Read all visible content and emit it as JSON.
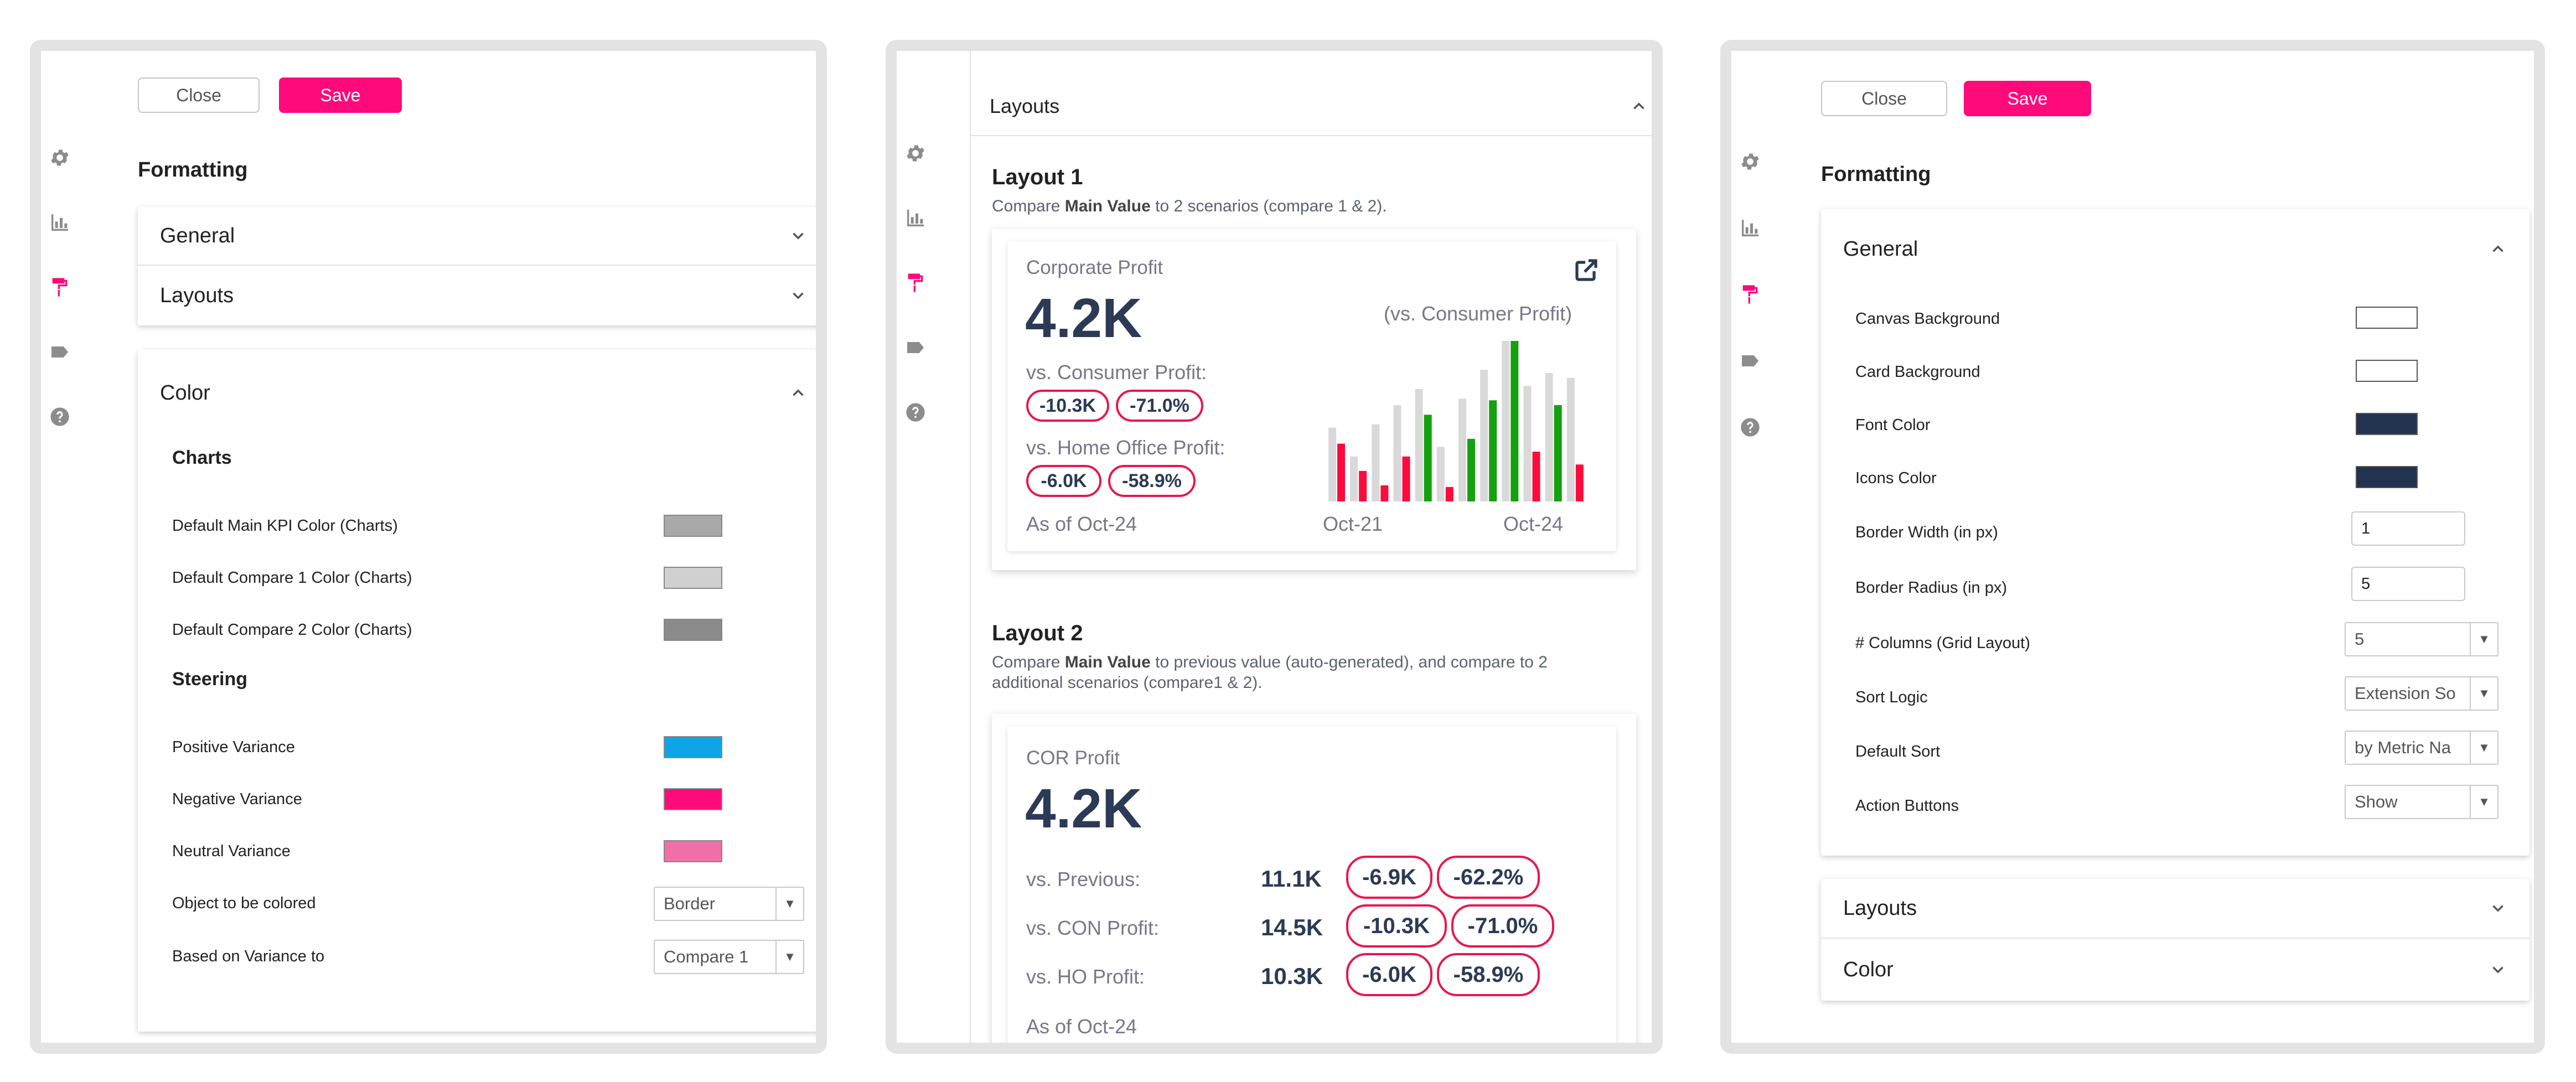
{
  "rail_icons": [
    "gear-icon",
    "bar-chart-icon",
    "paint-roller-icon",
    "tag-icon",
    "help-icon"
  ],
  "colors": {
    "accent": "#ff0a7a",
    "kpi_text": "#2b3a55",
    "pill_border": "#e8174e",
    "bar_gray": "#d9d9d9",
    "bar_red": "#ff0a3c",
    "bar_green": "#13a10e"
  },
  "panel1": {
    "buttons": {
      "close": "Close",
      "save": "Save"
    },
    "heading": "Formatting",
    "accordion": {
      "general": "General",
      "layouts": "Layouts",
      "color": "Color"
    },
    "charts": {
      "heading": "Charts",
      "rows": [
        {
          "label": "Default Main KPI Color (Charts)",
          "color": "#a9a9a9"
        },
        {
          "label": "Default Compare 1 Color (Charts)",
          "color": "#d0d0d0"
        },
        {
          "label": "Default Compare 2 Color (Charts)",
          "color": "#8b8b8b"
        }
      ]
    },
    "steering": {
      "heading": "Steering",
      "rows": [
        {
          "label": "Positive Variance",
          "color": "#0ea5e6"
        },
        {
          "label": "Negative Variance",
          "color": "#ff0a7a"
        },
        {
          "label": "Neutral Variance",
          "color": "#f06fa6"
        }
      ]
    },
    "selects": [
      {
        "label": "Object to be colored",
        "value": "Border"
      },
      {
        "label": "Based on Variance to",
        "value": "Compare 1"
      }
    ]
  },
  "panel2": {
    "section_title": "Layouts",
    "layout1": {
      "title": "Layout 1",
      "desc_pre": "Compare ",
      "desc_bold": "Main Value",
      "desc_post": " to 2 scenarios (compare 1 & 2).",
      "card": {
        "title": "Corporate Profit",
        "value": "4.2K",
        "chart_caption": "(vs. Consumer Profit)",
        "cmp1_label": "vs. Consumer Profit:",
        "cmp1_abs": "-10.3K",
        "cmp1_pct": "-71.0%",
        "cmp2_label": "vs. Home Office Profit:",
        "cmp2_abs": "-6.0K",
        "cmp2_pct": "-58.9%",
        "as_of": "As of Oct-24",
        "x_start": "Oct-21",
        "x_end": "Oct-24"
      }
    },
    "layout2": {
      "title": "Layout 2",
      "desc_pre": "Compare ",
      "desc_bold": "Main Value",
      "desc_post": " to previous value (auto-generated), and compare to 2",
      "desc_line2": "additional scenarios (compare1 & 2).",
      "card": {
        "title": "COR Profit",
        "value": "4.2K",
        "rows": [
          {
            "label": "vs. Previous:",
            "value": "11.1K",
            "abs": "-6.9K",
            "pct": "-62.2%"
          },
          {
            "label": "vs. CON Profit:",
            "value": "14.5K",
            "abs": "-10.3K",
            "pct": "-71.0%"
          },
          {
            "label": "vs. HO Profit:",
            "value": "10.3K",
            "abs": "-6.0K",
            "pct": "-58.9%"
          }
        ],
        "as_of": "As of Oct-24"
      }
    }
  },
  "chart_data": {
    "type": "bar",
    "title": "(vs. Consumer Profit)",
    "xlabel": "",
    "ylabel": "",
    "x_tick_labels": [
      "Oct-21",
      "Oct-24"
    ],
    "series": [
      {
        "name": "",
        "color": "#d9d9d9",
        "values": [
          46,
          28,
          48,
          60,
          70,
          34,
          64,
          82,
          100,
          72,
          80,
          77
        ]
      },
      {
        "name": "",
        "color": "mixed",
        "values": [
          36,
          19,
          10,
          28,
          54,
          9,
          39,
          63,
          100,
          31,
          60,
          23
        ],
        "signs": [
          "neg",
          "neg",
          "neg",
          "neg",
          "pos",
          "neg",
          "pos",
          "pos",
          "pos",
          "neg",
          "pos",
          "neg"
        ]
      }
    ],
    "ylim": [
      0,
      100
    ],
    "grid": false,
    "legend": "none"
  },
  "panel3": {
    "buttons": {
      "close": "Close",
      "save": "Save"
    },
    "heading": "Formatting",
    "accordion": {
      "general": "General",
      "layouts": "Layouts",
      "color": "Color"
    },
    "general_rows": [
      {
        "label": "Canvas Background",
        "kind": "swatch",
        "color": "#ffffff"
      },
      {
        "label": "Card Background",
        "kind": "swatch",
        "color": "#ffffff"
      },
      {
        "label": "Font Color",
        "kind": "swatch",
        "color": "#22334f"
      },
      {
        "label": "Icons Color",
        "kind": "swatch",
        "color": "#22334f"
      },
      {
        "label": "Border Width (in px)",
        "kind": "input",
        "value": "1"
      },
      {
        "label": "Border Radius (in px)",
        "kind": "input",
        "value": "5"
      },
      {
        "label": "# Columns (Grid Layout)",
        "kind": "select",
        "value": "5"
      },
      {
        "label": "Sort Logic",
        "kind": "select",
        "value": "Extension So"
      },
      {
        "label": "Default Sort",
        "kind": "select",
        "value": "by Metric Na"
      },
      {
        "label": "Action Buttons",
        "kind": "select",
        "value": "Show"
      }
    ]
  }
}
